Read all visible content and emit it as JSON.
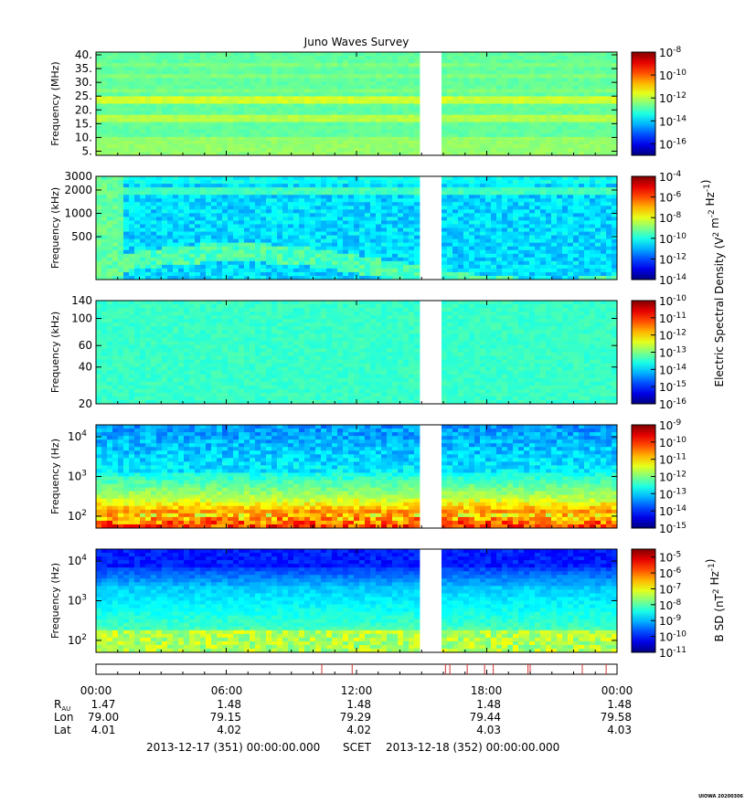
{
  "title": "Juno Waves Survey",
  "chart_data": {
    "type": "heatmap",
    "title": "Juno Waves Survey",
    "panels": [
      {
        "ylabel": "Frequency (MHz)",
        "yscale": "linear",
        "ylim": [
          3.5,
          41
        ],
        "yticks": [
          {
            "value": 40,
            "label": "40."
          },
          {
            "value": 35,
            "label": "35."
          },
          {
            "value": 30,
            "label": "30."
          },
          {
            "value": 25,
            "label": "25."
          },
          {
            "value": 20,
            "label": "20."
          },
          {
            "value": 15,
            "label": "15."
          },
          {
            "value": 10,
            "label": "10."
          },
          {
            "value": 5,
            "label": "5."
          }
        ],
        "colorbar": {
          "range_exp": [
            -17,
            -8
          ],
          "ticks": [
            {
              "exp": -8,
              "label": "10",
              "sup": "-8"
            },
            {
              "exp": -10,
              "label": "10",
              "sup": "-10"
            },
            {
              "exp": -12,
              "label": "10",
              "sup": "-12"
            },
            {
              "exp": -14,
              "label": "10",
              "sup": "-14"
            },
            {
              "exp": -16,
              "label": "10",
              "sup": "-16"
            }
          ]
        },
        "style": "hfr_high"
      },
      {
        "ylabel": "Frequency (kHz)",
        "yscale": "log",
        "ylim": [
          140,
          3000
        ],
        "yticks": [
          {
            "value": 3000,
            "label": "3000"
          },
          {
            "value": 2000,
            "label": "2000"
          },
          {
            "value": 1000,
            "label": "1000"
          },
          {
            "value": 500,
            "label": "500"
          }
        ],
        "colorbar": {
          "range_exp": [
            -14,
            -4
          ],
          "ticks": [
            {
              "exp": -4,
              "label": "10",
              "sup": "-4"
            },
            {
              "exp": -6,
              "label": "10",
              "sup": "-6"
            },
            {
              "exp": -8,
              "label": "10",
              "sup": "-8"
            },
            {
              "exp": -10,
              "label": "10",
              "sup": "-10"
            },
            {
              "exp": -12,
              "label": "10",
              "sup": "-12"
            },
            {
              "exp": -14,
              "label": "10",
              "sup": "-14"
            }
          ]
        },
        "style": "hfr_low"
      },
      {
        "ylabel": "Frequency (kHz)",
        "yscale": "log",
        "ylim": [
          20,
          140
        ],
        "yticks": [
          {
            "value": 140,
            "label": "140"
          },
          {
            "value": 100,
            "label": "100"
          },
          {
            "value": 60,
            "label": "60"
          },
          {
            "value": 40,
            "label": "40"
          },
          {
            "value": 20,
            "label": "20"
          }
        ],
        "colorbar": {
          "range_exp": [
            -16,
            -10
          ],
          "ticks": [
            {
              "exp": -10,
              "label": "10",
              "sup": "-10"
            },
            {
              "exp": -11,
              "label": "10",
              "sup": "-11"
            },
            {
              "exp": -12,
              "label": "10",
              "sup": "-12"
            },
            {
              "exp": -13,
              "label": "10",
              "sup": "-13"
            },
            {
              "exp": -14,
              "label": "10",
              "sup": "-14"
            },
            {
              "exp": -15,
              "label": "10",
              "sup": "-15"
            },
            {
              "exp": -16,
              "label": "10",
              "sup": "-16"
            }
          ]
        },
        "style": "lfr_high"
      },
      {
        "ylabel": "Frequency (Hz)",
        "yscale": "log",
        "ylim": [
          50,
          20000
        ],
        "yticks": [
          {
            "value": 10000,
            "label": "10",
            "sup": "4"
          },
          {
            "value": 1000,
            "label": "10",
            "sup": "3"
          },
          {
            "value": 100,
            "label": "10",
            "sup": "2"
          }
        ],
        "colorbar": {
          "range_exp": [
            -15,
            -9
          ],
          "ticks": [
            {
              "exp": -9,
              "label": "10",
              "sup": "-9"
            },
            {
              "exp": -10,
              "label": "10",
              "sup": "-10"
            },
            {
              "exp": -11,
              "label": "10",
              "sup": "-11"
            },
            {
              "exp": -12,
              "label": "10",
              "sup": "-12"
            },
            {
              "exp": -13,
              "label": "10",
              "sup": "-13"
            },
            {
              "exp": -14,
              "label": "10",
              "sup": "-14"
            },
            {
              "exp": -15,
              "label": "10",
              "sup": "-15"
            }
          ]
        },
        "style": "lfr_e"
      },
      {
        "ylabel": "Frequency (Hz)",
        "yscale": "log",
        "ylim": [
          50,
          20000
        ],
        "yticks": [
          {
            "value": 10000,
            "label": "10",
            "sup": "4"
          },
          {
            "value": 1000,
            "label": "10",
            "sup": "3"
          },
          {
            "value": 100,
            "label": "10",
            "sup": "2"
          }
        ],
        "colorbar": {
          "range_exp": [
            -11,
            -4.5
          ],
          "ticks": [
            {
              "exp": -5,
              "label": "10",
              "sup": "-5"
            },
            {
              "exp": -6,
              "label": "10",
              "sup": "-6"
            },
            {
              "exp": -7,
              "label": "10",
              "sup": "-7"
            },
            {
              "exp": -8,
              "label": "10",
              "sup": "-8"
            },
            {
              "exp": -9,
              "label": "10",
              "sup": "-9"
            },
            {
              "exp": -10,
              "label": "10",
              "sup": "-10"
            },
            {
              "exp": -11,
              "label": "10",
              "sup": "-11"
            }
          ]
        },
        "style": "lfr_b"
      }
    ],
    "x_hours_range": [
      0,
      24
    ],
    "data_gap_hours": [
      15.0,
      15.75
    ],
    "event_marks_hours": [
      10.4,
      11.8,
      16.1,
      16.3,
      17.1,
      17.9,
      18.3,
      19.9,
      20.0,
      22.4,
      23.5
    ],
    "shared_colorbar_labels": {
      "electric": {
        "pre": "Electric Spectral Density (V",
        "sup1": "2",
        "mid": " m",
        "sup2": "-2",
        "mid2": " Hz",
        "sup3": "-1",
        "post": ")"
      },
      "magnetic": {
        "pre": "B SD (nT",
        "sup1": "2",
        "mid": " Hz",
        "sup2": "-1",
        "post": ")"
      }
    },
    "xaxis": {
      "time_labels": [
        "00:00",
        "06:00",
        "12:00",
        "18:00",
        "00:00"
      ],
      "rows": [
        {
          "name": "R",
          "sub": "AU",
          "values": [
            "1.47",
            "1.48",
            "1.48",
            "1.48",
            "1.48"
          ]
        },
        {
          "name": "Lon",
          "sub": "",
          "values": [
            "79.00",
            "79.15",
            "79.29",
            "79.44",
            "79.58"
          ]
        },
        {
          "name": "Lat",
          "sub": "",
          "values": [
            "4.01",
            "4.02",
            "4.02",
            "4.03",
            "4.03"
          ]
        }
      ]
    }
  },
  "footer": {
    "start": "2013-12-17 (351) 00:00:00.000",
    "scet": "SCET",
    "end": "2013-12-18 (352) 00:00:00.000"
  },
  "credit": "UIOWA 20200306"
}
